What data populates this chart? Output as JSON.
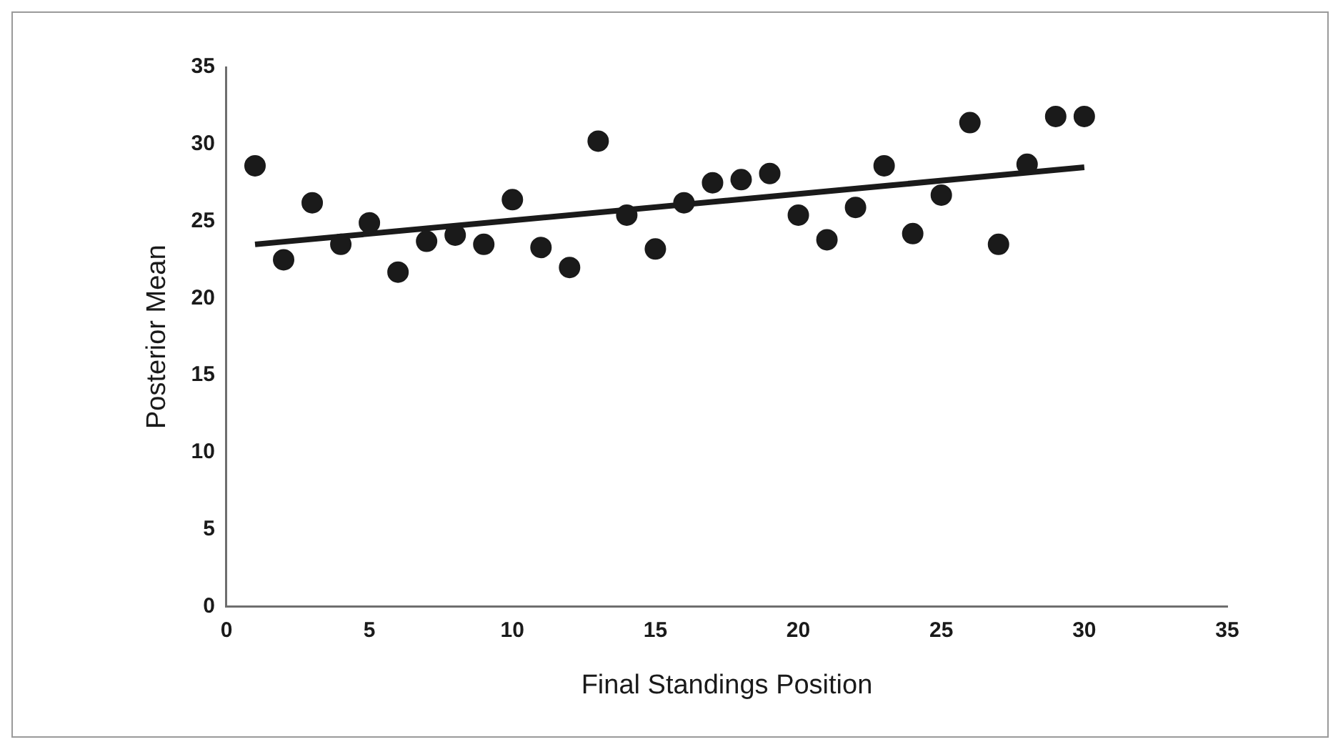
{
  "chart_data": {
    "type": "scatter",
    "xlabel": "Final Standings Position",
    "ylabel": "Posterior Mean",
    "xlim": [
      0,
      35
    ],
    "xticks": [
      0,
      5,
      10,
      15,
      20,
      25,
      30,
      35
    ],
    "ylim": [
      0,
      35
    ],
    "yticks": [
      0,
      5,
      10,
      15,
      20,
      25,
      30,
      35
    ],
    "grid": false,
    "legend": false,
    "marker": "circle",
    "series": [
      {
        "color": "#1a1a1a",
        "x": [
          1,
          2,
          3,
          4,
          5,
          6,
          7,
          8,
          9,
          10,
          11,
          12,
          13,
          14,
          15,
          16,
          17,
          18,
          19,
          20,
          21,
          22,
          23,
          24,
          25,
          26,
          27,
          28,
          29,
          30
        ],
        "values": [
          28.6,
          22.5,
          26.2,
          23.5,
          24.9,
          21.7,
          23.7,
          24.1,
          23.5,
          26.4,
          23.3,
          22.0,
          30.2,
          25.4,
          23.2,
          26.2,
          27.5,
          27.7,
          28.1,
          25.4,
          23.8,
          25.9,
          28.6,
          24.2,
          26.7,
          31.4,
          23.5,
          28.7,
          31.8,
          31.8
        ]
      },
      {
        "type": "line",
        "color": "#1a1a1a",
        "marker": "none",
        "line_style": "solid",
        "x": [
          1,
          30
        ],
        "values": [
          23.5,
          28.5
        ]
      }
    ]
  }
}
